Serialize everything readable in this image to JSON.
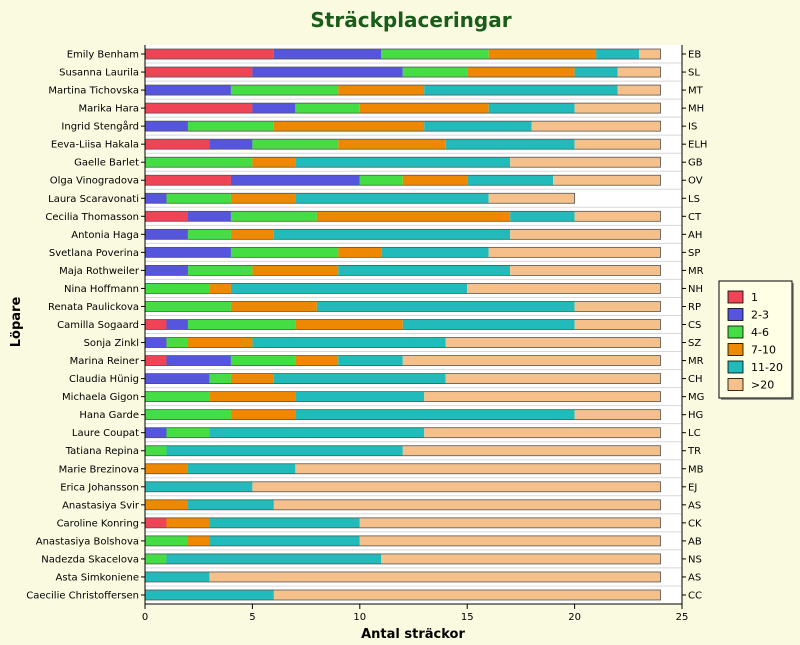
{
  "chart_data": {
    "type": "bar",
    "stacked": true,
    "orientation": "horizontal",
    "title": "Sträckplaceringar",
    "xlabel": "Antal sträckor",
    "ylabel": "Löpare",
    "xlim": [
      0,
      25
    ],
    "xticks": [
      0,
      5,
      10,
      15,
      20,
      25
    ],
    "grid": true,
    "legend_position": "right",
    "categories": [
      "Emily Benham",
      "Susanna Laurila",
      "Martina Tichovska",
      "Marika Hara",
      "Ingrid Stengård",
      "Eeva-Liisa Hakala",
      "Gaelle Barlet",
      "Olga Vinogradova",
      "Laura Scaravonati",
      "Cecilia Thomasson",
      "Antonia Haga",
      "Svetlana Poverina",
      "Maja Rothweiler",
      "Nina Hoffmann",
      "Renata Paulickova",
      "Camilla Sogaard",
      "Sonja Zinkl",
      "Marina Reiner",
      "Claudia Hünig",
      "Michaela Gigon",
      "Hana Garde",
      "Laure Coupat",
      "Tatiana Repina",
      "Marie Brezinova",
      "Erica Johansson",
      "Anastasiya Svir",
      "Caroline Konring",
      "Anastasiya Bolshova",
      "Nadezda Skacelova",
      "Asta Simkoniene",
      "Caecilie Christoffersen"
    ],
    "right_labels": [
      "EB",
      "SL",
      "MT",
      "MH",
      "IS",
      "ELH",
      "GB",
      "OV",
      "LS",
      "CT",
      "AH",
      "SP",
      "MR",
      "NH",
      "RP",
      "CS",
      "SZ",
      "MR",
      "CH",
      "MG",
      "HG",
      "LC",
      "TR",
      "MB",
      "EJ",
      "AS",
      "CK",
      "AB",
      "NS",
      "AS",
      "CC"
    ],
    "series": [
      {
        "name": "1",
        "color": "#ee4455",
        "values": [
          6,
          5,
          0,
          5,
          0,
          3,
          0,
          4,
          0,
          2,
          0,
          0,
          0,
          0,
          0,
          1,
          0,
          1,
          0,
          0,
          0,
          0,
          0,
          0,
          0,
          0,
          1,
          0,
          0,
          0,
          0
        ]
      },
      {
        "name": "2-3",
        "color": "#5555dd",
        "values": [
          5,
          7,
          4,
          2,
          2,
          2,
          0,
          6,
          1,
          2,
          2,
          4,
          2,
          0,
          0,
          1,
          1,
          3,
          3,
          0,
          0,
          1,
          0,
          0,
          0,
          0,
          0,
          0,
          0,
          0,
          0
        ]
      },
      {
        "name": "4-6",
        "color": "#44dd44",
        "values": [
          5,
          3,
          5,
          3,
          4,
          4,
          5,
          2,
          3,
          4,
          2,
          5,
          3,
          3,
          4,
          5,
          1,
          3,
          1,
          3,
          4,
          2,
          1,
          0,
          0,
          0,
          0,
          2,
          1,
          0,
          0
        ]
      },
      {
        "name": "7-10",
        "color": "#ee8800",
        "values": [
          5,
          5,
          4,
          6,
          7,
          5,
          2,
          3,
          3,
          9,
          2,
          2,
          4,
          1,
          4,
          5,
          3,
          2,
          2,
          4,
          3,
          0,
          0,
          2,
          0,
          2,
          2,
          1,
          0,
          0,
          0
        ]
      },
      {
        "name": "11-20",
        "color": "#22bbbb",
        "values": [
          2,
          2,
          9,
          4,
          5,
          6,
          10,
          4,
          9,
          3,
          11,
          5,
          8,
          11,
          12,
          8,
          9,
          3,
          8,
          6,
          13,
          10,
          11,
          5,
          5,
          4,
          7,
          7,
          10,
          3,
          6
        ]
      },
      {
        "name": ">20",
        "color": "#f5c08a",
        "values": [
          1,
          2,
          2,
          4,
          6,
          4,
          7,
          5,
          4,
          4,
          7,
          8,
          7,
          9,
          4,
          4,
          10,
          12,
          10,
          11,
          4,
          11,
          12,
          17,
          19,
          18,
          14,
          14,
          13,
          21,
          18
        ]
      }
    ]
  }
}
